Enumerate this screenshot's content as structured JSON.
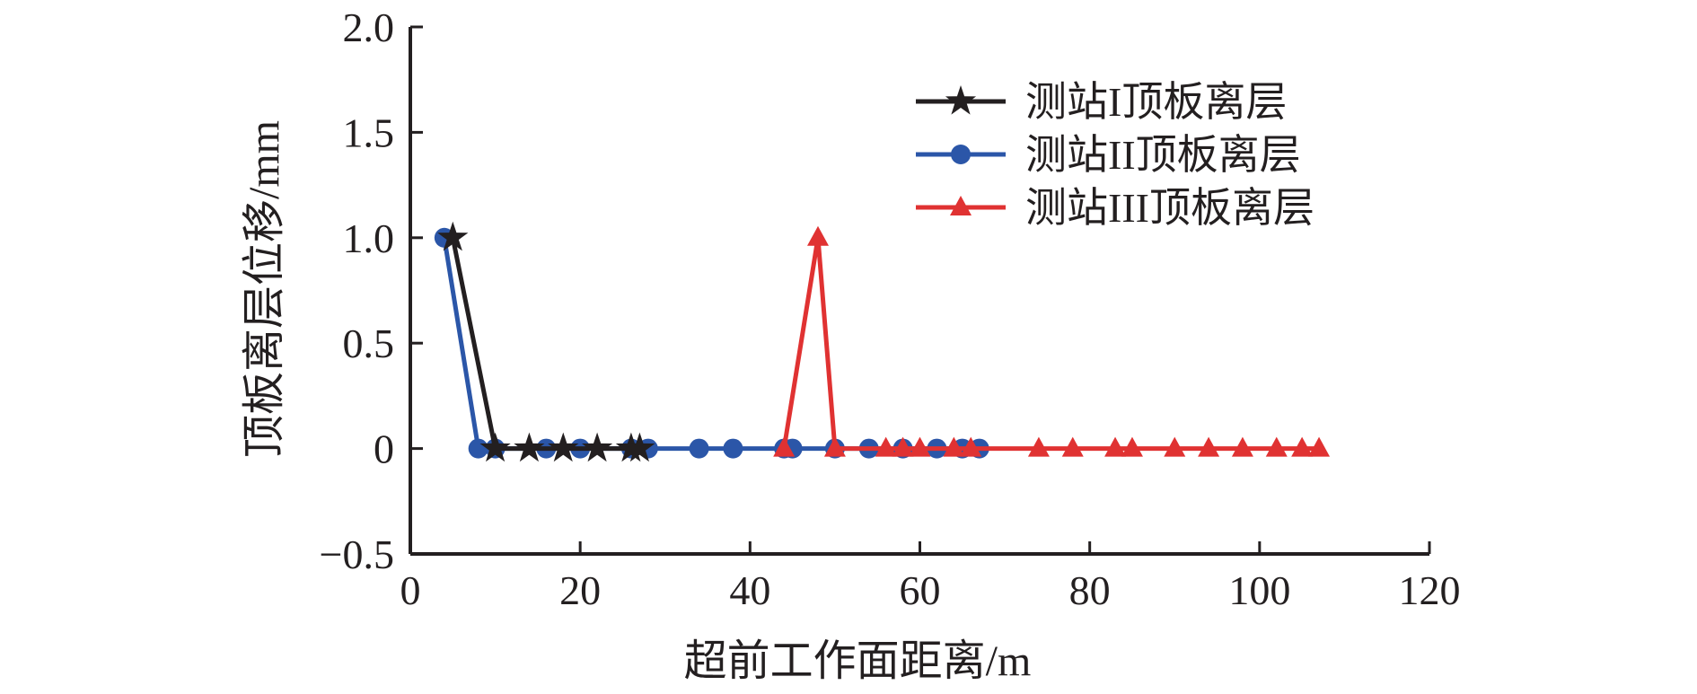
{
  "chart_data": {
    "type": "line",
    "xlabel": "超前工作面距离/m",
    "ylabel": "顶板离层位移/mm",
    "xlim": [
      0,
      120
    ],
    "ylim": [
      -0.5,
      2.0
    ],
    "x_ticks": [
      "0",
      "20",
      "40",
      "60",
      "80",
      "100",
      "120"
    ],
    "y_ticks": [
      "−0.5",
      "0",
      "0.5",
      "1.0",
      "1.5",
      "2.0"
    ],
    "y_tick_values": [
      -0.5,
      0,
      0.5,
      1.0,
      1.5,
      2.0
    ],
    "x_tick_values": [
      0,
      20,
      40,
      60,
      80,
      100,
      120
    ],
    "grid": false,
    "legend_position": "top-right",
    "series": [
      {
        "name": "测站I顶板离层",
        "color": "#231f20",
        "marker": "star",
        "points": [
          [
            5,
            1.0
          ],
          [
            10,
            0
          ],
          [
            14,
            0
          ],
          [
            18,
            0
          ],
          [
            22,
            0
          ],
          [
            26,
            0
          ],
          [
            27,
            0
          ]
        ]
      },
      {
        "name": "测站II顶板离层",
        "color": "#2b56a8",
        "marker": "circle",
        "points": [
          [
            4,
            1.0
          ],
          [
            8,
            0
          ],
          [
            10,
            0
          ],
          [
            16,
            0
          ],
          [
            20,
            0
          ],
          [
            26,
            0
          ],
          [
            28,
            0
          ],
          [
            34,
            0
          ],
          [
            38,
            0
          ],
          [
            44,
            0
          ],
          [
            45,
            0
          ],
          [
            50,
            0
          ],
          [
            54,
            0
          ],
          [
            58,
            0
          ],
          [
            62,
            0
          ],
          [
            65,
            0
          ],
          [
            67,
            0
          ]
        ]
      },
      {
        "name": "测站III顶板离层",
        "color": "#e03232",
        "marker": "triangle",
        "points": [
          [
            44,
            0
          ],
          [
            48,
            1.0
          ],
          [
            50,
            0
          ],
          [
            56,
            0
          ],
          [
            58,
            0
          ],
          [
            60,
            0
          ],
          [
            64,
            0
          ],
          [
            66,
            0
          ],
          [
            74,
            0
          ],
          [
            78,
            0
          ],
          [
            83,
            0
          ],
          [
            85,
            0
          ],
          [
            90,
            0
          ],
          [
            94,
            0
          ],
          [
            98,
            0
          ],
          [
            102,
            0
          ],
          [
            105,
            0
          ],
          [
            107,
            0
          ]
        ]
      }
    ]
  }
}
